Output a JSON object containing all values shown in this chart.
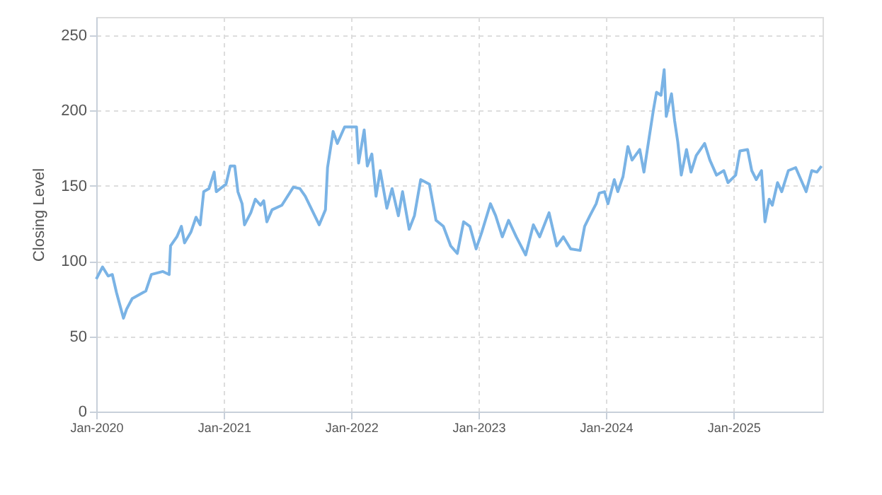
{
  "chart_data": {
    "type": "line",
    "ylabel": "Closing Level",
    "x": [
      "2020-01-01",
      "2020-01-19",
      "2020-02-04",
      "2020-02-16",
      "2020-02-28",
      "2020-03-19",
      "2020-03-28",
      "2020-04-13",
      "2020-05-22",
      "2020-06-07",
      "2020-07-10",
      "2020-07-28",
      "2020-08-01",
      "2020-08-19",
      "2020-09-01",
      "2020-09-10",
      "2020-09-28",
      "2020-10-13",
      "2020-10-25",
      "2020-11-04",
      "2020-11-19",
      "2020-12-04",
      "2020-12-10",
      "2021-01-07",
      "2021-01-19",
      "2021-02-01",
      "2021-02-10",
      "2021-02-22",
      "2021-03-01",
      "2021-03-19",
      "2021-04-01",
      "2021-04-16",
      "2021-04-25",
      "2021-05-04",
      "2021-05-19",
      "2021-06-16",
      "2021-07-19",
      "2021-08-07",
      "2021-08-22",
      "2021-09-10",
      "2021-10-01",
      "2021-10-19",
      "2021-10-25",
      "2021-11-10",
      "2021-11-22",
      "2021-12-13",
      "2022-01-16",
      "2022-01-22",
      "2022-02-07",
      "2022-02-16",
      "2022-03-01",
      "2022-03-13",
      "2022-03-25",
      "2022-04-13",
      "2022-04-28",
      "2022-05-16",
      "2022-05-28",
      "2022-06-16",
      "2022-07-01",
      "2022-07-19",
      "2022-08-13",
      "2022-09-01",
      "2022-09-22",
      "2022-10-13",
      "2022-11-01",
      "2022-11-19",
      "2022-12-07",
      "2022-12-25",
      "2023-01-10",
      "2023-02-04",
      "2023-02-19",
      "2023-03-10",
      "2023-03-28",
      "2023-04-19",
      "2023-05-16",
      "2023-06-07",
      "2023-06-25",
      "2023-07-22",
      "2023-08-13",
      "2023-09-01",
      "2023-09-22",
      "2023-10-19",
      "2023-11-01",
      "2023-11-16",
      "2023-12-04",
      "2023-12-13",
      "2023-12-28",
      "2024-01-07",
      "2024-01-25",
      "2024-02-04",
      "2024-02-19",
      "2024-03-04",
      "2024-03-16",
      "2024-04-07",
      "2024-04-19",
      "2024-05-04",
      "2024-05-16",
      "2024-05-25",
      "2024-06-07",
      "2024-06-16",
      "2024-06-22",
      "2024-07-07",
      "2024-07-16",
      "2024-07-25",
      "2024-08-04",
      "2024-08-19",
      "2024-09-01",
      "2024-09-16",
      "2024-10-10",
      "2024-10-25",
      "2024-11-13",
      "2024-12-04",
      "2024-12-16",
      "2025-01-07",
      "2025-01-19",
      "2025-02-10",
      "2025-02-22",
      "2025-03-07",
      "2025-03-22",
      "2025-04-01",
      "2025-04-13",
      "2025-04-22",
      "2025-05-07",
      "2025-05-19",
      "2025-06-07",
      "2025-06-28",
      "2025-07-13",
      "2025-07-28",
      "2025-08-13",
      "2025-08-28",
      "2025-09-10"
    ],
    "series": [
      {
        "color": "#7ab3e5",
        "values": [
          88,
          96,
          90,
          91,
          79,
          62,
          68,
          75,
          80,
          91,
          93,
          91,
          110,
          116,
          123,
          112,
          119,
          129,
          124,
          146,
          148,
          159,
          146,
          151,
          163,
          163,
          146,
          138,
          124,
          132,
          141,
          137,
          140,
          126,
          134,
          137,
          149,
          148,
          143,
          134,
          124,
          134,
          162,
          186,
          178,
          189,
          189,
          165,
          187,
          163,
          171,
          143,
          160,
          135,
          148,
          130,
          146,
          121,
          130,
          154,
          151,
          127,
          123,
          110,
          105,
          126,
          123,
          108,
          119,
          138,
          130,
          116,
          127,
          116,
          104,
          124,
          116,
          132,
          110,
          116,
          108,
          107,
          123,
          130,
          138,
          145,
          146,
          138,
          154,
          146,
          156,
          176,
          167,
          174,
          159,
          182,
          200,
          212,
          210,
          227,
          196,
          211,
          193,
          179,
          157,
          174,
          159,
          170,
          178,
          167,
          157,
          160,
          152,
          157,
          173,
          174,
          160,
          154,
          160,
          126,
          141,
          137,
          152,
          146,
          160,
          162,
          154,
          146,
          160,
          159,
          163
        ]
      }
    ],
    "xlim": [
      "2020-01-01",
      "2025-09-13"
    ],
    "ylim": [
      0,
      262
    ],
    "xticks": [
      {
        "value": "2020-01-01",
        "label": "Jan-2020"
      },
      {
        "value": "2021-01-01",
        "label": "Jan-2021"
      },
      {
        "value": "2022-01-01",
        "label": "Jan-2022"
      },
      {
        "value": "2023-01-01",
        "label": "Jan-2023"
      },
      {
        "value": "2024-01-01",
        "label": "Jan-2024"
      },
      {
        "value": "2025-01-01",
        "label": "Jan-2025"
      }
    ],
    "yticks": [
      0,
      50,
      100,
      150,
      200,
      250
    ],
    "grid": true
  }
}
